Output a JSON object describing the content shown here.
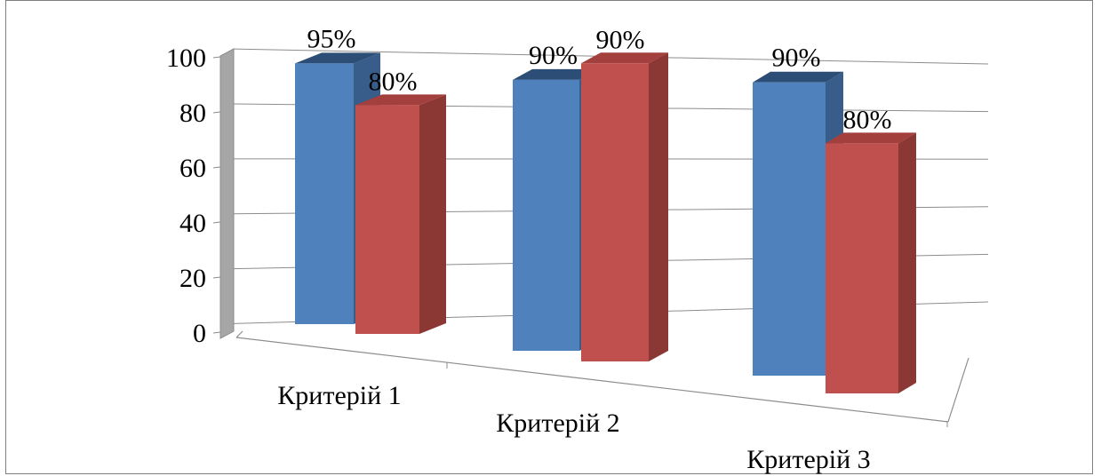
{
  "chart_data": {
    "type": "bar",
    "categories": [
      "Критерій 1",
      "Критерій 2",
      "Критерій 3"
    ],
    "series": [
      {
        "values": [
          95,
          90,
          90
        ],
        "labels": [
          "95%",
          "90%",
          "90%"
        ],
        "color": "#4f81bd"
      },
      {
        "values": [
          80,
          90,
          80
        ],
        "labels": [
          "80%",
          "90%",
          "80%"
        ],
        "color": "#c0504d"
      }
    ],
    "ylim": [
      0,
      100
    ],
    "yticks": [
      0,
      20,
      40,
      60,
      80,
      100
    ],
    "grid": true,
    "legend": "none",
    "style": "3d-clustered-column",
    "colors": {
      "back_wall": "#a6a6a6",
      "gridline": "#8c8c8c",
      "blue_front": "#4f81bd",
      "blue_side": "#385d8a",
      "red_front": "#c0504d",
      "red_side": "#8b3734"
    }
  }
}
